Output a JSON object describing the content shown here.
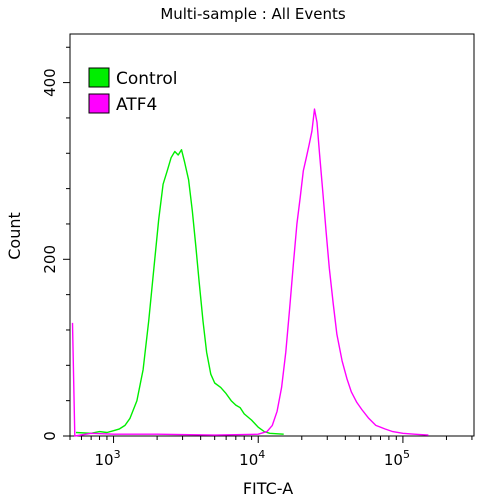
{
  "chart_data": {
    "type": "line",
    "title": "Multi-sample : All Events",
    "xlabel": "FITC-A",
    "ylabel": "Count",
    "x_scale": "log",
    "xlim": [
      500,
      310000
    ],
    "ylim": [
      0,
      455
    ],
    "x_ticks": [
      {
        "value": 1000,
        "base": "10",
        "exp": "3"
      },
      {
        "value": 10000,
        "base": "10",
        "exp": "4"
      },
      {
        "value": 100000,
        "base": "10",
        "exp": "5"
      }
    ],
    "y_ticks": [
      0,
      200,
      400
    ],
    "legend": {
      "position": "top-left"
    },
    "grid": false,
    "series": [
      {
        "name": "Control",
        "color": "#00ee00",
        "points": [
          [
            550,
            4
          ],
          [
            700,
            3
          ],
          [
            800,
            5
          ],
          [
            900,
            4
          ],
          [
            1000,
            6
          ],
          [
            1100,
            8
          ],
          [
            1200,
            12
          ],
          [
            1300,
            20
          ],
          [
            1450,
            40
          ],
          [
            1600,
            75
          ],
          [
            1750,
            130
          ],
          [
            1900,
            190
          ],
          [
            2050,
            245
          ],
          [
            2200,
            285
          ],
          [
            2350,
            300
          ],
          [
            2500,
            315
          ],
          [
            2650,
            322
          ],
          [
            2800,
            318
          ],
          [
            2950,
            324
          ],
          [
            3100,
            310
          ],
          [
            3300,
            290
          ],
          [
            3500,
            255
          ],
          [
            3700,
            215
          ],
          [
            3900,
            175
          ],
          [
            4150,
            130
          ],
          [
            4400,
            95
          ],
          [
            4700,
            70
          ],
          [
            5000,
            60
          ],
          [
            5500,
            55
          ],
          [
            6000,
            48
          ],
          [
            6500,
            40
          ],
          [
            7000,
            35
          ],
          [
            7500,
            32
          ],
          [
            8000,
            25
          ],
          [
            9000,
            18
          ],
          [
            10000,
            10
          ],
          [
            11000,
            5
          ],
          [
            12000,
            3
          ],
          [
            15000,
            2
          ]
        ]
      },
      {
        "name": "ATF4",
        "color": "#ff00ff",
        "points": [
          [
            520,
            128
          ],
          [
            540,
            0
          ],
          [
            700,
            3
          ],
          [
            1000,
            2
          ],
          [
            2000,
            2
          ],
          [
            5000,
            1
          ],
          [
            10000,
            2
          ],
          [
            11500,
            5
          ],
          [
            12500,
            12
          ],
          [
            13500,
            28
          ],
          [
            14500,
            55
          ],
          [
            15500,
            95
          ],
          [
            16500,
            145
          ],
          [
            17500,
            195
          ],
          [
            18500,
            240
          ],
          [
            19500,
            270
          ],
          [
            20500,
            300
          ],
          [
            21500,
            315
          ],
          [
            22500,
            330
          ],
          [
            23500,
            345
          ],
          [
            24500,
            370
          ],
          [
            25500,
            355
          ],
          [
            26500,
            320
          ],
          [
            28000,
            275
          ],
          [
            29500,
            230
          ],
          [
            31000,
            190
          ],
          [
            33000,
            150
          ],
          [
            35000,
            115
          ],
          [
            38000,
            85
          ],
          [
            41000,
            65
          ],
          [
            44000,
            50
          ],
          [
            48000,
            38
          ],
          [
            52000,
            30
          ],
          [
            58000,
            20
          ],
          [
            65000,
            12
          ],
          [
            75000,
            8
          ],
          [
            85000,
            5
          ],
          [
            100000,
            3
          ],
          [
            120000,
            2
          ],
          [
            150000,
            1
          ]
        ]
      }
    ]
  }
}
